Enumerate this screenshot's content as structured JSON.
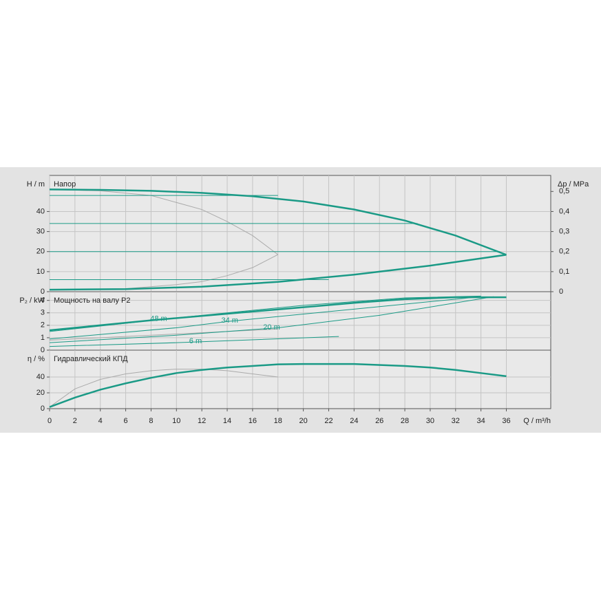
{
  "chart_data": [
    {
      "type": "line",
      "title": "Напор",
      "ylabel": "H / m",
      "y2label": "Δp / MPa",
      "xlim": [
        0,
        39.5
      ],
      "xticks": [
        0,
        2,
        4,
        6,
        8,
        10,
        12,
        14,
        16,
        18,
        20,
        22,
        24,
        26,
        28,
        30,
        32,
        34,
        36
      ],
      "ylim": [
        0,
        58
      ],
      "yticks": [
        0,
        10,
        20,
        30,
        40
      ],
      "y2lim": [
        0,
        0.58
      ],
      "y2ticks": [
        0,
        {
          "value": 0.1,
          "label": "0,1"
        },
        {
          "value": 0.2,
          "label": "0,2"
        },
        {
          "value": 0.3,
          "label": "0,3"
        },
        {
          "value": 0.4,
          "label": "0,4"
        },
        {
          "value": 0.5,
          "label": "0,5"
        }
      ],
      "grid": true,
      "series": [
        {
          "color": "#aaaaaa",
          "line_width": 1,
          "x": [
            0,
            4,
            8,
            12,
            14,
            16,
            18
          ],
          "values": [
            51,
            50.3,
            48,
            41,
            35,
            28,
            18.5
          ]
        },
        {
          "color": "#aaaaaa",
          "line_width": 1,
          "x": [
            0,
            6,
            10,
            12,
            14,
            16,
            18
          ],
          "values": [
            1,
            1.5,
            3.5,
            5,
            8,
            12,
            18.5
          ]
        },
        {
          "color": "#1a9a86",
          "line_width": 1,
          "x": [
            0,
            18
          ],
          "values": [
            48,
            48
          ]
        },
        {
          "color": "#1a9a86",
          "line_width": 1,
          "x": [
            0,
            29
          ],
          "values": [
            34,
            34
          ]
        },
        {
          "color": "#1a9a86",
          "line_width": 1,
          "x": [
            0,
            35.5
          ],
          "values": [
            20,
            20
          ]
        },
        {
          "color": "#1a9a86",
          "line_width": 1,
          "x": [
            0,
            22
          ],
          "values": [
            6,
            6
          ]
        },
        {
          "color": "#1a9a86",
          "line_width": 2.5,
          "x": [
            0,
            4,
            8,
            12,
            16,
            20,
            24,
            28,
            32,
            36
          ],
          "values": [
            51,
            50.8,
            50.3,
            49.3,
            47.6,
            45,
            41,
            35.5,
            28,
            18.4
          ]
        },
        {
          "color": "#1a9a86",
          "line_width": 2.5,
          "x": [
            0,
            6,
            12,
            18,
            24,
            30,
            36
          ],
          "values": [
            1,
            1.3,
            2.5,
            4.9,
            8.5,
            13,
            18.4
          ]
        }
      ]
    },
    {
      "type": "line",
      "title": "Мощность на валу P2",
      "ylabel": "P₂ / kW",
      "xlim": [
        0,
        39.5
      ],
      "xticks": [
        0,
        2,
        4,
        6,
        8,
        10,
        12,
        14,
        16,
        18,
        20,
        22,
        24,
        26,
        28,
        30,
        32,
        34,
        36
      ],
      "ylim": [
        0,
        4.7
      ],
      "yticks": [
        0,
        1,
        2,
        3,
        4
      ],
      "grid": true,
      "series": [
        {
          "color": "#aaaaaa",
          "line_width": 1,
          "x": [
            0,
            6,
            12,
            18
          ],
          "values": [
            0.8,
            1.1,
            1.4,
            1.7
          ]
        },
        {
          "name": "48 m",
          "color": "#1a9a86",
          "line_width": 1,
          "x": [
            0,
            10,
            20,
            28,
            34
          ],
          "values": [
            1.5,
            2.6,
            3.6,
            4.2,
            4.35
          ]
        },
        {
          "name": "34 m",
          "color": "#1a9a86",
          "line_width": 1,
          "x": [
            0,
            10,
            14,
            24,
            34
          ],
          "values": [
            0.9,
            1.8,
            2.3,
            3.3,
            4.3
          ]
        },
        {
          "name": "20 m",
          "color": "#1a9a86",
          "line_width": 1,
          "x": [
            0,
            10,
            18,
            26,
            35
          ],
          "values": [
            0.6,
            1.2,
            1.8,
            2.8,
            4.3
          ]
        },
        {
          "name": "6 m",
          "color": "#1a9a86",
          "line_width": 1,
          "x": [
            0,
            10,
            22.8
          ],
          "values": [
            0.3,
            0.6,
            1.1
          ]
        },
        {
          "color": "#1a9a86",
          "line_width": 2.5,
          "x": [
            0,
            8,
            16,
            24,
            28,
            32,
            36
          ],
          "values": [
            1.6,
            2.4,
            3.1,
            3.8,
            4.1,
            4.25,
            4.25
          ]
        }
      ]
    },
    {
      "type": "line",
      "title": "Гидравлический КПД",
      "ylabel": "η / %",
      "xlabel": "Q / m³/h",
      "xlim": [
        0,
        39.5
      ],
      "xticks": [
        0,
        2,
        4,
        6,
        8,
        10,
        12,
        14,
        16,
        18,
        20,
        22,
        24,
        26,
        28,
        30,
        32,
        34,
        36
      ],
      "ylim": [
        0,
        74
      ],
      "yticks": [
        0,
        20,
        40
      ],
      "grid": true,
      "series": [
        {
          "color": "#aaaaaa",
          "line_width": 1,
          "x": [
            0,
            2,
            4,
            6,
            8,
            10,
            12,
            14,
            16,
            18
          ],
          "values": [
            2,
            25,
            37,
            44,
            48,
            50,
            50,
            48,
            44,
            40
          ]
        },
        {
          "color": "#1a9a86",
          "line_width": 2.5,
          "x": [
            0,
            2,
            4,
            6,
            8,
            10,
            12,
            14,
            16,
            18,
            20,
            24,
            28,
            30,
            32,
            34,
            36
          ],
          "values": [
            2,
            14,
            24,
            32,
            39,
            45,
            49,
            52,
            54,
            56,
            56.5,
            56.5,
            54,
            52,
            49,
            45,
            41
          ]
        }
      ]
    }
  ]
}
